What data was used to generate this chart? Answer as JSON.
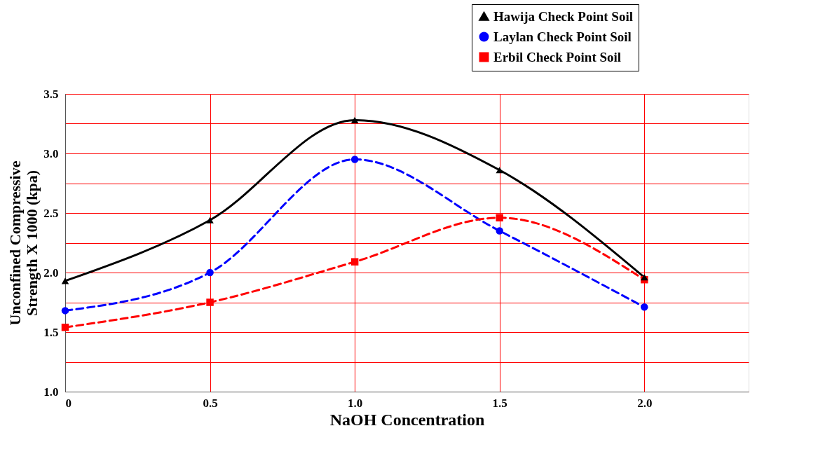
{
  "chart_data": {
    "type": "line",
    "xlabel": "NaOH Concentration",
    "ylabel": "Unconfined Compressive Strength X 1000 (kpa)",
    "x": [
      0,
      0.5,
      1.0,
      1.5,
      2.0
    ],
    "series": [
      {
        "name": "Hawija Check Point Soil",
        "color": "#000000",
        "marker": "triangle",
        "line_style": "solid",
        "values": [
          1.93,
          2.44,
          3.28,
          2.86,
          1.96
        ]
      },
      {
        "name": "Laylan Check Point Soil",
        "color": "#0000ff",
        "marker": "circle",
        "line_style": "dashed",
        "values": [
          1.68,
          2.0,
          2.95,
          2.35,
          1.71
        ]
      },
      {
        "name": "Erbil Check Point Soil",
        "color": "#ff0000",
        "marker": "square",
        "line_style": "dashed",
        "values": [
          1.54,
          1.75,
          2.09,
          2.46,
          1.94
        ]
      }
    ],
    "xlim": [
      0,
      2.36
    ],
    "xticks": [
      {
        "value": 0,
        "label": "0"
      },
      {
        "value": 0.5,
        "label": "0.5"
      },
      {
        "value": 1.0,
        "label": "1.0"
      },
      {
        "value": 1.5,
        "label": "1.5"
      },
      {
        "value": 2.0,
        "label": "2.0"
      }
    ],
    "ylim": [
      1.0,
      3.5
    ],
    "yticks": [
      {
        "value": 1.0,
        "label": "1.0"
      },
      {
        "value": 1.25,
        "label": null
      },
      {
        "value": 1.5,
        "label": "1.5"
      },
      {
        "value": 1.75,
        "label": null
      },
      {
        "value": 2.0,
        "label": "2.0"
      },
      {
        "value": 2.25,
        "label": null
      },
      {
        "value": 2.5,
        "label": "2.5"
      },
      {
        "value": 2.75,
        "label": null
      },
      {
        "value": 3.0,
        "label": "3.0"
      },
      {
        "value": 3.25,
        "label": null
      },
      {
        "value": 3.5,
        "label": "3.5"
      }
    ],
    "grid": true,
    "legend": "top right"
  }
}
